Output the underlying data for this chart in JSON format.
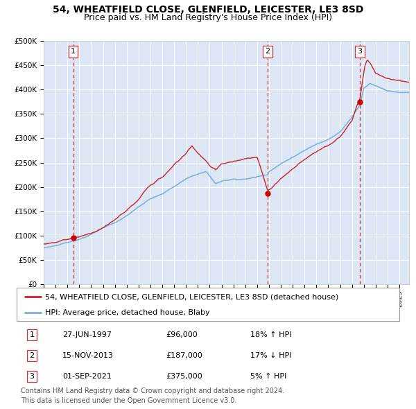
{
  "title": "54, WHEATFIELD CLOSE, GLENFIELD, LEICESTER, LE3 8SD",
  "subtitle": "Price paid vs. HM Land Registry's House Price Index (HPI)",
  "ylim": [
    0,
    500000
  ],
  "yticks": [
    0,
    50000,
    100000,
    150000,
    200000,
    250000,
    300000,
    350000,
    400000,
    450000,
    500000
  ],
  "ytick_labels": [
    "£0",
    "£50K",
    "£100K",
    "£150K",
    "£200K",
    "£250K",
    "£300K",
    "£350K",
    "£400K",
    "£450K",
    "£500K"
  ],
  "xlim_start": 1995.0,
  "xlim_end": 2025.8,
  "plot_bg_color": "#dce6f5",
  "grid_color": "#ffffff",
  "hpi_line_color": "#7aaddc",
  "price_line_color": "#cc2222",
  "sale_marker_color": "#cc0000",
  "dashed_vline_color": "#cc3333",
  "sale_dates_year": [
    1997.49,
    2013.88,
    2021.67
  ],
  "sale_prices": [
    96000,
    187000,
    375000
  ],
  "sale_labels": [
    "1",
    "2",
    "3"
  ],
  "legend_label_red": "54, WHEATFIELD CLOSE, GLENFIELD, LEICESTER, LE3 8SD (detached house)",
  "legend_label_blue": "HPI: Average price, detached house, Blaby",
  "table_rows": [
    [
      "1",
      "27-JUN-1997",
      "£96,000",
      "18% ↑ HPI"
    ],
    [
      "2",
      "15-NOV-2013",
      "£187,000",
      "17% ↓ HPI"
    ],
    [
      "3",
      "01-SEP-2021",
      "£375,000",
      "5% ↑ HPI"
    ]
  ],
  "footnote": "Contains HM Land Registry data © Crown copyright and database right 2024.\nThis data is licensed under the Open Government Licence v3.0.",
  "title_fontsize": 10,
  "subtitle_fontsize": 9,
  "tick_fontsize": 7.5,
  "legend_fontsize": 8,
  "table_fontsize": 8,
  "footnote_fontsize": 7
}
